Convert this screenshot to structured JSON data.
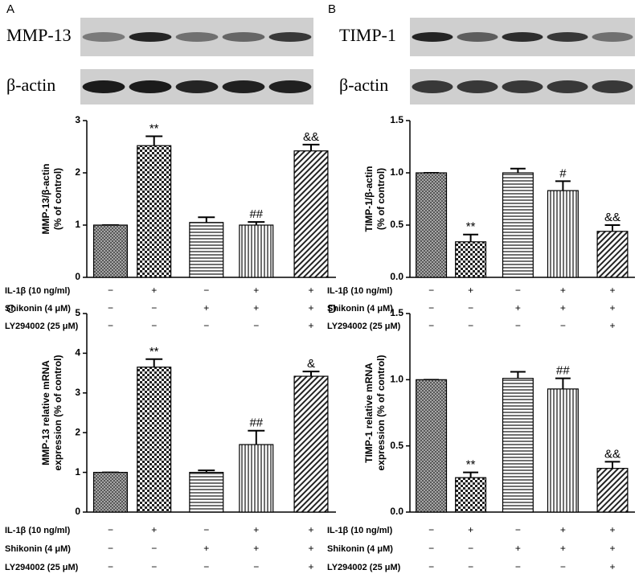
{
  "chart_data": [
    {
      "type": "bar",
      "panel": "A",
      "ylabel": [
        "MMP-13/β-actin",
        "(% of control)"
      ],
      "ylim": [
        0,
        3
      ],
      "yticks": [
        0,
        1,
        2,
        3
      ],
      "values": [
        1.0,
        2.52,
        1.05,
        1.0,
        2.42
      ],
      "errors": [
        0,
        0.18,
        0.1,
        0.06,
        0.12
      ],
      "annotations": [
        null,
        "**",
        null,
        "##",
        "&&"
      ],
      "blots": [
        "MMP-13",
        "β-actin"
      ],
      "conditions": [
        {
          "label": "IL-1β (10 ng/ml)",
          "signs": [
            "−",
            "+",
            "−",
            "+",
            "+"
          ]
        },
        {
          "label": "Shikonin (4 μM)",
          "signs": [
            "−",
            "−",
            "+",
            "+",
            "+"
          ]
        },
        {
          "label": "LY294002 (25 μM)",
          "signs": [
            "−",
            "−",
            "−",
            "−",
            "+"
          ]
        }
      ]
    },
    {
      "type": "bar",
      "panel": "B",
      "ylabel": [
        "TIMP-1/β-actin",
        "(% of control)"
      ],
      "ylim": [
        0,
        1.5
      ],
      "yticks": [
        {
          "value": 0,
          "label": "0.0"
        },
        {
          "value": 0.5,
          "label": "0.5"
        },
        {
          "value": 1,
          "label": "1.0"
        },
        {
          "value": 1.5,
          "label": "1.5"
        }
      ],
      "values": [
        1.0,
        0.34,
        1.0,
        0.83,
        0.44
      ],
      "errors": [
        0,
        0.07,
        0.04,
        0.09,
        0.06
      ],
      "annotations": [
        null,
        "**",
        null,
        "#",
        "&&"
      ],
      "blots": [
        "TIMP-1",
        "β-actin"
      ],
      "conditions": [
        {
          "label": "IL-1β (10 ng/ml)",
          "signs": [
            "−",
            "+",
            "−",
            "+",
            "+"
          ]
        },
        {
          "label": "Shikonin (4 μM)",
          "signs": [
            "−",
            "−",
            "+",
            "+",
            "+"
          ]
        },
        {
          "label": "LY294002 (25 μM)",
          "signs": [
            "−",
            "−",
            "−",
            "−",
            "+"
          ]
        }
      ]
    },
    {
      "type": "bar",
      "panel": "C",
      "ylabel": [
        "MMP-13 relative mRNA",
        "expression (% of control)"
      ],
      "ylim": [
        0,
        5
      ],
      "yticks": [
        0,
        1,
        2,
        3,
        4,
        5
      ],
      "values": [
        1.0,
        3.65,
        1.0,
        1.7,
        3.42
      ],
      "errors": [
        0,
        0.2,
        0.05,
        0.35,
        0.12
      ],
      "annotations": [
        null,
        "**",
        null,
        "##",
        "&"
      ],
      "conditions": [
        {
          "label": "IL-1β (10 ng/ml)",
          "signs": [
            "−",
            "+",
            "−",
            "+",
            "+"
          ]
        },
        {
          "label": "Shikonin (4 μM)",
          "signs": [
            "−",
            "−",
            "+",
            "+",
            "+"
          ]
        },
        {
          "label": "LY294002 (25 μM)",
          "signs": [
            "−",
            "−",
            "−",
            "−",
            "+"
          ]
        }
      ]
    },
    {
      "type": "bar",
      "panel": "D",
      "ylabel": [
        "TIMP-1 relative mRNA",
        "expression (% of control)"
      ],
      "ylim": [
        0,
        1.5
      ],
      "yticks": [
        {
          "value": 0,
          "label": "0.0"
        },
        {
          "value": 0.5,
          "label": "0.5"
        },
        {
          "value": 1,
          "label": "1.0"
        },
        {
          "value": 1.5,
          "label": "1.5"
        }
      ],
      "values": [
        1.0,
        0.26,
        1.01,
        0.93,
        0.33
      ],
      "errors": [
        0,
        0.04,
        0.05,
        0.08,
        0.05
      ],
      "annotations": [
        null,
        "**",
        null,
        "##",
        "&&"
      ],
      "conditions": [
        {
          "label": "IL-1β (10 ng/ml)",
          "signs": [
            "−",
            "+",
            "−",
            "+",
            "+"
          ]
        },
        {
          "label": "Shikonin (4 μM)",
          "signs": [
            "−",
            "−",
            "+",
            "+",
            "+"
          ]
        },
        {
          "label": "LY294002 (25 μM)",
          "signs": [
            "−",
            "−",
            "−",
            "−",
            "+"
          ]
        }
      ]
    }
  ]
}
